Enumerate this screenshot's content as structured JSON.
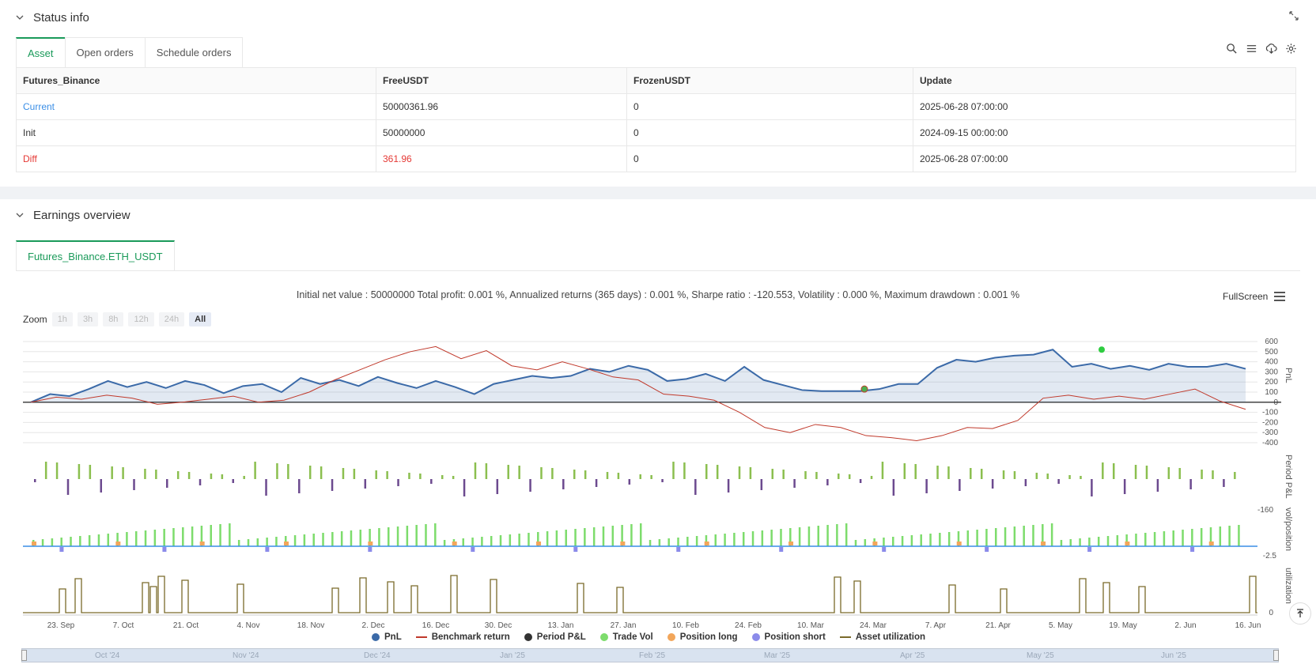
{
  "status": {
    "title": "Status info",
    "tabs": [
      "Asset",
      "Open orders",
      "Schedule orders"
    ],
    "active_tab": "Asset",
    "table": {
      "headers": [
        "Futures_Binance",
        "FreeUSDT",
        "FrozenUSDT",
        "Update"
      ],
      "rows": [
        [
          "Current",
          "50000361.96",
          "0",
          "2025-06-28 07:00:00"
        ],
        [
          "Init",
          "50000000",
          "0",
          "2024-09-15 00:00:00"
        ],
        [
          "Diff",
          "361.96",
          "0",
          "2025-06-28 07:00:00"
        ]
      ]
    },
    "icons": [
      "search-icon",
      "list-icon",
      "download-icon",
      "settings-icon"
    ]
  },
  "earnings": {
    "title": "Earnings overview",
    "tab": "Futures_Binance.ETH_USDT",
    "summary": "Initial net value : 50000000 Total profit: 0.001 %, Annualized returns (365 days) : 0.001 %, Sharpe ratio : -120.553, Volatility : 0.000 %, Maximum drawdown : 0.001 %",
    "fullscreen_label": "FullScreen",
    "zoom_label": "Zoom",
    "zoom_buttons": [
      "1h",
      "3h",
      "8h",
      "12h",
      "24h",
      "All"
    ],
    "zoom_active": "All"
  },
  "chart_data": {
    "type": "line",
    "x_ticks": [
      "23. Sep",
      "7. Oct",
      "21. Oct",
      "4. Nov",
      "18. Nov",
      "2. Dec",
      "16. Dec",
      "30. Dec",
      "13. Jan",
      "27. Jan",
      "10. Feb",
      "24. Feb",
      "10. Mar",
      "24. Mar",
      "7. Apr",
      "21. Apr",
      "5. May",
      "19. May",
      "2. Jun",
      "16. Jun"
    ],
    "pnl_axis": {
      "label": "PnL",
      "ticks": [
        600,
        500,
        400,
        300,
        200,
        100,
        0,
        -100,
        -200,
        -300,
        -400
      ]
    },
    "period_axis": {
      "label": "Period P&L",
      "ticks": [
        -160
      ]
    },
    "vol_axis": {
      "label": "vol/position",
      "ticks": [
        -2.5
      ]
    },
    "util_axis": {
      "label": "utilization",
      "ticks": [
        0
      ]
    },
    "navigator_labels": [
      "Oct '24",
      "Nov '24",
      "Dec '24",
      "Jan '25",
      "Feb '25",
      "Mar '25",
      "Apr '25",
      "May '25",
      "Jun '25"
    ],
    "series": [
      {
        "name": "PnL",
        "color": "#3b6aa8",
        "values": [
          0,
          80,
          60,
          130,
          210,
          150,
          200,
          140,
          210,
          170,
          90,
          160,
          180,
          100,
          240,
          180,
          220,
          160,
          250,
          190,
          140,
          210,
          150,
          80,
          180,
          220,
          260,
          240,
          260,
          330,
          300,
          360,
          320,
          210,
          230,
          280,
          210,
          350,
          220,
          170,
          120,
          110,
          110,
          110,
          130,
          180,
          180,
          340,
          420,
          400,
          440,
          460,
          470,
          520,
          350,
          380,
          330,
          360,
          320,
          380,
          350,
          350,
          380,
          330
        ]
      },
      {
        "name": "Benchmark return",
        "color": "#c0392b",
        "values": [
          0,
          50,
          30,
          70,
          40,
          -20,
          0,
          30,
          60,
          0,
          20,
          100,
          220,
          320,
          420,
          500,
          550,
          430,
          510,
          360,
          320,
          400,
          330,
          250,
          220,
          80,
          60,
          20,
          -100,
          -250,
          -300,
          -220,
          -250,
          -330,
          -350,
          -380,
          -330,
          -250,
          -260,
          -180,
          40,
          70,
          30,
          60,
          30,
          80,
          130,
          10,
          -70
        ]
      },
      {
        "name": "Period P&L",
        "color": "#333333",
        "values": []
      },
      {
        "name": "Trade Vol",
        "color": "#7ddc6c",
        "values": []
      },
      {
        "name": "Position long",
        "color": "#f2a65a",
        "values": []
      },
      {
        "name": "Position short",
        "color": "#8b8bea",
        "values": []
      },
      {
        "name": "Asset utilization",
        "color": "#7a6a2a",
        "values": []
      }
    ]
  }
}
